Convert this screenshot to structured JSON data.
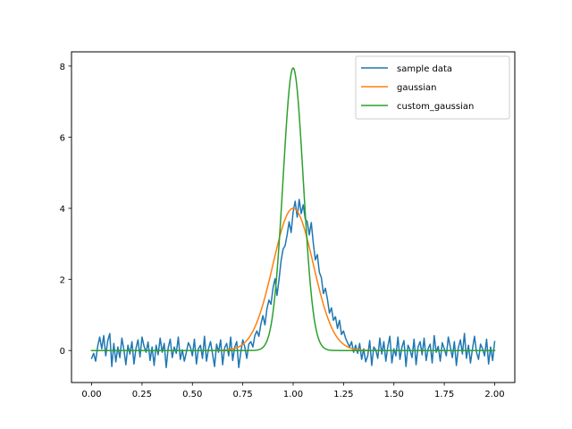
{
  "chart_data": {
    "type": "line",
    "title": "",
    "xlabel": "",
    "ylabel": "",
    "xlim": [
      -0.1,
      2.1
    ],
    "ylim": [
      -0.9,
      8.4
    ],
    "grid": false,
    "legend_position": "top-right",
    "x_ticks": [
      0.0,
      0.25,
      0.5,
      0.75,
      1.0,
      1.25,
      1.5,
      1.75,
      2.0
    ],
    "x_tick_labels": [
      "0.00",
      "0.25",
      "0.50",
      "0.75",
      "1.00",
      "1.25",
      "1.50",
      "1.75",
      "2.00"
    ],
    "y_ticks": [
      0,
      2,
      4,
      6,
      8
    ],
    "y_tick_labels": [
      "0",
      "2",
      "4",
      "6",
      "8"
    ],
    "series": [
      {
        "name": "sample data",
        "color": "#1f77b4",
        "x": [
          0.0,
          0.01,
          0.02,
          0.03,
          0.04,
          0.05,
          0.06,
          0.07,
          0.08,
          0.09,
          0.1,
          0.11,
          0.12,
          0.13,
          0.14,
          0.15,
          0.16,
          0.17,
          0.18,
          0.19,
          0.2,
          0.21,
          0.22,
          0.23,
          0.24,
          0.25,
          0.26,
          0.27,
          0.28,
          0.29,
          0.3,
          0.31,
          0.32,
          0.33,
          0.34,
          0.35,
          0.36,
          0.37,
          0.38,
          0.39,
          0.4,
          0.41,
          0.42,
          0.43,
          0.44,
          0.45,
          0.46,
          0.47,
          0.48,
          0.49,
          0.5,
          0.51,
          0.52,
          0.53,
          0.54,
          0.55,
          0.56,
          0.57,
          0.58,
          0.59,
          0.6,
          0.61,
          0.62,
          0.63,
          0.64,
          0.65,
          0.66,
          0.67,
          0.68,
          0.69,
          0.7,
          0.71,
          0.72,
          0.73,
          0.74,
          0.75,
          0.76,
          0.77,
          0.78,
          0.79,
          0.8,
          0.81,
          0.82,
          0.83,
          0.84,
          0.85,
          0.86,
          0.87,
          0.88,
          0.89,
          0.9,
          0.91,
          0.92,
          0.93,
          0.94,
          0.95,
          0.96,
          0.97,
          0.98,
          0.99,
          1.0,
          1.01,
          1.02,
          1.03,
          1.04,
          1.05,
          1.06,
          1.07,
          1.08,
          1.09,
          1.1,
          1.11,
          1.12,
          1.13,
          1.14,
          1.15,
          1.16,
          1.17,
          1.18,
          1.19,
          1.2,
          1.21,
          1.22,
          1.23,
          1.24,
          1.25,
          1.26,
          1.27,
          1.28,
          1.29,
          1.3,
          1.31,
          1.32,
          1.33,
          1.34,
          1.35,
          1.36,
          1.37,
          1.38,
          1.39,
          1.4,
          1.41,
          1.42,
          1.43,
          1.44,
          1.45,
          1.46,
          1.47,
          1.48,
          1.49,
          1.5,
          1.51,
          1.52,
          1.53,
          1.54,
          1.55,
          1.56,
          1.57,
          1.58,
          1.59,
          1.6,
          1.61,
          1.62,
          1.63,
          1.64,
          1.65,
          1.66,
          1.67,
          1.68,
          1.69,
          1.7,
          1.71,
          1.72,
          1.73,
          1.74,
          1.75,
          1.76,
          1.77,
          1.78,
          1.79,
          1.8,
          1.81,
          1.82,
          1.83,
          1.84,
          1.85,
          1.86,
          1.87,
          1.88,
          1.89,
          1.9,
          1.91,
          1.92,
          1.93,
          1.94,
          1.95,
          1.96,
          1.97,
          1.98,
          1.99,
          2.0
        ],
        "y": [
          -0.22,
          -0.08,
          -0.3,
          0.12,
          0.38,
          0.05,
          0.42,
          -0.15,
          0.28,
          0.48,
          -0.45,
          0.2,
          -0.32,
          0.1,
          -0.2,
          0.35,
          0.02,
          -0.4,
          0.15,
          -0.1,
          0.25,
          -0.38,
          0.06,
          0.3,
          -0.18,
          0.38,
          0.12,
          -0.05,
          0.24,
          -0.28,
          0.1,
          -0.42,
          0.15,
          -0.12,
          0.35,
          -0.05,
          0.2,
          -0.48,
          0.08,
          0.32,
          -0.2,
          0.1,
          -0.08,
          0.38,
          -0.25,
          0.02,
          -0.3,
          -0.05,
          0.22,
          0.1,
          -0.15,
          0.32,
          -0.38,
          0.05,
          0.15,
          -0.22,
          0.4,
          -0.3,
          0.05,
          0.25,
          -0.1,
          -0.45,
          0.18,
          -0.05,
          0.3,
          -0.4,
          0.08,
          0.2,
          -0.15,
          0.38,
          -0.28,
          0.1,
          0.25,
          -0.48,
          -0.05,
          0.3,
          0.1,
          -0.22,
          0.18,
          0.25,
          0.1,
          0.42,
          0.55,
          0.4,
          0.75,
          0.98,
          0.72,
          1.18,
          1.42,
          1.3,
          1.75,
          2.02,
          1.55,
          2.0,
          2.52,
          2.85,
          2.95,
          3.25,
          3.62,
          3.32,
          3.9,
          4.2,
          3.75,
          4.25,
          3.85,
          4.1,
          3.7,
          3.62,
          3.25,
          3.6,
          3.02,
          2.55,
          2.7,
          2.2,
          2.05,
          1.6,
          1.75,
          1.45,
          1.05,
          1.2,
          0.85,
          0.95,
          0.62,
          0.85,
          0.45,
          0.55,
          0.35,
          0.22,
          0.1,
          0.25,
          -0.05,
          0.15,
          -0.08,
          0.2,
          -0.25,
          0.05,
          -0.32,
          -0.15,
          0.28,
          -0.42,
          0.1,
          0.02,
          -0.22,
          0.35,
          -0.1,
          0.25,
          -0.3,
          0.12,
          0.4,
          -0.35,
          0.05,
          -0.15,
          0.38,
          -0.25,
          0.1,
          0.28,
          -0.45,
          0.15,
          0.02,
          -0.2,
          0.32,
          -0.4,
          0.1,
          0.25,
          -0.12,
          0.35,
          -0.28,
          0.05,
          0.18,
          -0.35,
          0.42,
          -0.05,
          0.12,
          -0.3,
          0.22,
          0.05,
          -0.15,
          0.38,
          0.1,
          -0.2,
          0.25,
          -0.42,
          0.08,
          0.3,
          -0.1,
          0.48,
          -0.22,
          0.15,
          -0.35,
          0.05,
          0.4,
          -0.05,
          -0.25,
          0.18,
          0.05,
          -0.15,
          0.32,
          -0.38,
          0.1,
          -0.28,
          0.25
        ]
      },
      {
        "name": "gaussian",
        "color": "#ff7f0e",
        "amplitude": 4.0,
        "mean": 1.0,
        "sigma": 0.1
      },
      {
        "name": "custom_gaussian",
        "color": "#2ca02c",
        "amplitude": 7.95,
        "mean": 1.0,
        "sigma": 0.05
      }
    ]
  }
}
